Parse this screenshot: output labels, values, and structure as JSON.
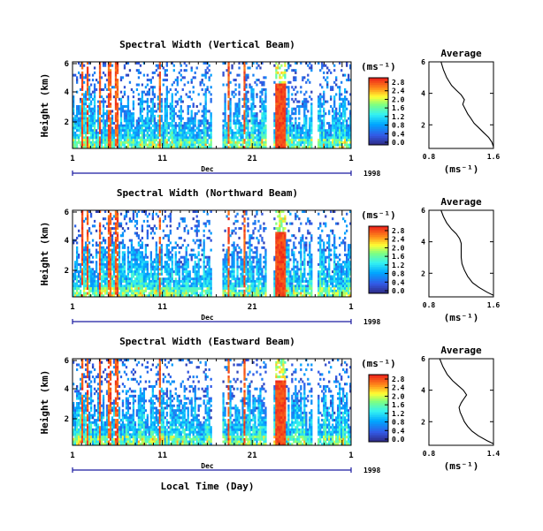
{
  "chart_data": [
    {
      "type": "heatmap",
      "title": "Spectral Width (Vertical Beam)",
      "ylabel": "Height (km)",
      "yticks": [
        "6",
        "4",
        "2"
      ],
      "xticks": [
        "1",
        "11",
        "21",
        "1"
      ],
      "month_label": "Dec",
      "year_label": "1998",
      "colorbar": {
        "unit": "(ms⁻¹)",
        "ticks": [
          "2.8",
          "2.4",
          "2.0",
          "1.6",
          "1.2",
          "0.8",
          "0.4",
          "0.0"
        ]
      },
      "profile": {
        "title": "Average",
        "xlabel": "(ms⁻¹)",
        "xticks": [
          "0.8",
          "1.6"
        ],
        "yticks": [
          "6",
          "4",
          "2"
        ],
        "xlim": [
          0.8,
          1.6
        ],
        "ylim": [
          0.5,
          6
        ],
        "points": [
          [
            0.95,
            6.0
          ],
          [
            0.98,
            5.5
          ],
          [
            1.02,
            5.0
          ],
          [
            1.08,
            4.5
          ],
          [
            1.14,
            4.2
          ],
          [
            1.2,
            3.9
          ],
          [
            1.24,
            3.6
          ],
          [
            1.22,
            3.3
          ],
          [
            1.25,
            3.0
          ],
          [
            1.28,
            2.7
          ],
          [
            1.32,
            2.4
          ],
          [
            1.36,
            2.1
          ],
          [
            1.42,
            1.8
          ],
          [
            1.48,
            1.5
          ],
          [
            1.54,
            1.2
          ],
          [
            1.58,
            0.9
          ],
          [
            1.6,
            0.6
          ]
        ]
      }
    },
    {
      "type": "heatmap",
      "title": "Spectral Width (Northward Beam)",
      "ylabel": "Height (km)",
      "yticks": [
        "6",
        "4",
        "2"
      ],
      "xticks": [
        "1",
        "11",
        "21",
        "1"
      ],
      "month_label": "Dec",
      "year_label": "1998",
      "colorbar": {
        "unit": "(ms⁻¹)",
        "ticks": [
          "2.8",
          "2.4",
          "2.0",
          "1.6",
          "1.2",
          "0.8",
          "0.4",
          "0.0"
        ]
      },
      "profile": {
        "title": "Average",
        "xlabel": "(ms⁻¹)",
        "xticks": [
          "0.8",
          "1.6"
        ],
        "yticks": [
          "6",
          "4",
          "2"
        ],
        "xlim": [
          0.8,
          1.6
        ],
        "ylim": [
          0.5,
          6
        ],
        "points": [
          [
            0.95,
            6.0
          ],
          [
            0.98,
            5.6
          ],
          [
            1.02,
            5.2
          ],
          [
            1.08,
            4.8
          ],
          [
            1.14,
            4.5
          ],
          [
            1.18,
            4.2
          ],
          [
            1.2,
            3.9
          ],
          [
            1.2,
            3.5
          ],
          [
            1.2,
            3.0
          ],
          [
            1.21,
            2.6
          ],
          [
            1.24,
            2.2
          ],
          [
            1.28,
            1.8
          ],
          [
            1.34,
            1.4
          ],
          [
            1.42,
            1.1
          ],
          [
            1.52,
            0.8
          ],
          [
            1.6,
            0.6
          ]
        ]
      }
    },
    {
      "type": "heatmap",
      "title": "Spectral Width (Eastward Beam)",
      "ylabel": "Height (km)",
      "yticks": [
        "6",
        "4",
        "2"
      ],
      "xticks": [
        "1",
        "11",
        "21",
        "1"
      ],
      "month_label": "Dec",
      "year_label": "1998",
      "xlabel": "Local Time (Day)",
      "colorbar": {
        "unit": "(ms⁻¹)",
        "ticks": [
          "2.8",
          "2.4",
          "2.0",
          "1.6",
          "1.2",
          "0.8",
          "0.4",
          "0.0"
        ]
      },
      "profile": {
        "title": "Average",
        "xlabel": "(ms⁻¹)",
        "xticks": [
          "0.8",
          "1.4"
        ],
        "yticks": [
          "6",
          "4",
          "2"
        ],
        "xlim": [
          0.8,
          1.4
        ],
        "ylim": [
          0.5,
          6
        ],
        "points": [
          [
            0.9,
            6.0
          ],
          [
            0.93,
            5.5
          ],
          [
            0.97,
            5.0
          ],
          [
            1.02,
            4.6
          ],
          [
            1.07,
            4.3
          ],
          [
            1.12,
            4.0
          ],
          [
            1.15,
            3.7
          ],
          [
            1.13,
            3.5
          ],
          [
            1.1,
            3.2
          ],
          [
            1.08,
            2.9
          ],
          [
            1.09,
            2.6
          ],
          [
            1.11,
            2.3
          ],
          [
            1.13,
            2.0
          ],
          [
            1.16,
            1.7
          ],
          [
            1.2,
            1.4
          ],
          [
            1.26,
            1.1
          ],
          [
            1.34,
            0.8
          ],
          [
            1.4,
            0.6
          ]
        ]
      }
    }
  ]
}
